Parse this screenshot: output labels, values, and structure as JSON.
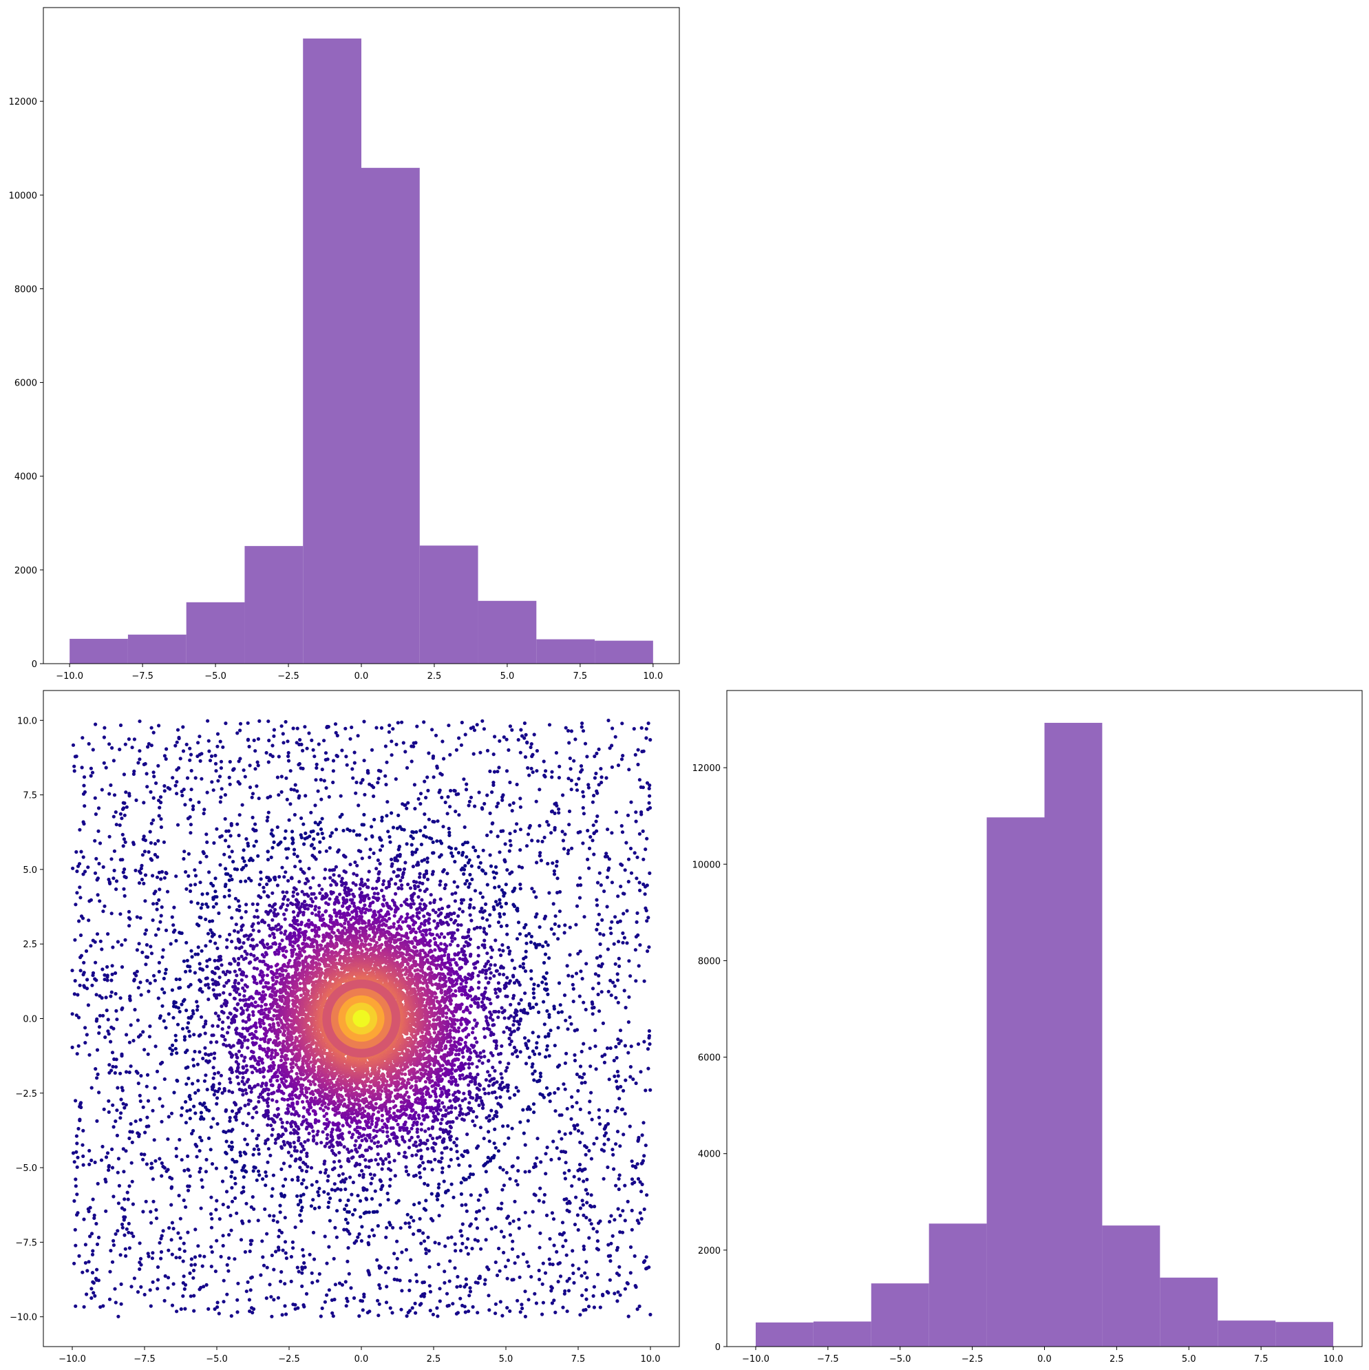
{
  "colors": {
    "bar": "#9467bd",
    "scatter_colormap": [
      "#0d0887",
      "#6a00a8",
      "#b12a90",
      "#e16462",
      "#fca636",
      "#f0f921"
    ],
    "scatter_colormap_name": "plasma"
  },
  "chart_data": [
    {
      "id": "hist-x",
      "type": "bar",
      "subtype": "histogram",
      "bin_edges": [
        -10,
        -8,
        -6,
        -4,
        -2,
        0,
        2,
        4,
        6,
        8,
        10
      ],
      "values": [
        530,
        620,
        1310,
        2510,
        13340,
        10580,
        2520,
        1340,
        520,
        490
      ],
      "xlim": [
        -10.9,
        10.9
      ],
      "ylim": [
        0,
        14000
      ],
      "xticks": [
        -10.0,
        -7.5,
        -5.0,
        -2.5,
        0.0,
        2.5,
        5.0,
        7.5,
        10.0
      ],
      "xtick_labels": [
        "−10.0",
        "−7.5",
        "−5.0",
        "−2.5",
        "0.0",
        "2.5",
        "5.0",
        "7.5",
        "10.0"
      ],
      "yticks": [
        0,
        2000,
        4000,
        6000,
        8000,
        10000,
        12000
      ],
      "ytick_labels": [
        "0",
        "2000",
        "4000",
        "6000",
        "8000",
        "10000",
        "12000"
      ],
      "title": "",
      "xlabel": "",
      "ylabel": ""
    },
    {
      "id": "scatter-xy",
      "type": "scatter",
      "description_of_data": "About 30000 points in [-10,10] x [-10,10]: a dense radial cluster around the origin (radius up to about 6.5) plus uniform background; color encodes radial density (plasma colormap, yellow at center).",
      "components": {
        "uniform_background": {
          "xrange": [
            -10,
            10
          ],
          "yrange": [
            -10,
            10
          ]
        },
        "radial_cluster": {
          "center": [
            0,
            0
          ],
          "max_radius": 6.5
        }
      },
      "xlim": [
        -11,
        11
      ],
      "ylim": [
        -11,
        11
      ],
      "xticks": [
        -10.0,
        -7.5,
        -5.0,
        -2.5,
        0.0,
        2.5,
        5.0,
        7.5,
        10.0
      ],
      "xtick_labels": [
        "−10.0",
        "−7.5",
        "−5.0",
        "−2.5",
        "0.0",
        "2.5",
        "5.0",
        "7.5",
        "10.0"
      ],
      "yticks": [
        -10.0,
        -7.5,
        -5.0,
        -2.5,
        0.0,
        2.5,
        5.0,
        7.5,
        10.0
      ],
      "ytick_labels": [
        "−10.0",
        "−7.5",
        "−5.0",
        "−2.5",
        "0.0",
        "2.5",
        "5.0",
        "7.5",
        "10.0"
      ],
      "title": "",
      "xlabel": "",
      "ylabel": ""
    },
    {
      "id": "hist-y",
      "type": "bar",
      "subtype": "histogram",
      "bin_edges": [
        -10,
        -8,
        -6,
        -4,
        -2,
        0,
        2,
        4,
        6,
        8,
        10
      ],
      "values": [
        500,
        520,
        1310,
        2550,
        10970,
        12930,
        2510,
        1430,
        540,
        510
      ],
      "xlim": [
        -11,
        11
      ],
      "ylim": [
        0,
        13600
      ],
      "xticks": [
        -10.0,
        -7.5,
        -5.0,
        -2.5,
        0.0,
        2.5,
        5.0,
        7.5,
        10.0
      ],
      "xtick_labels": [
        "−10.0",
        "−7.5",
        "−5.0",
        "−2.5",
        "0.0",
        "2.5",
        "5.0",
        "7.5",
        "10.0"
      ],
      "yticks": [
        0,
        2000,
        4000,
        6000,
        8000,
        10000,
        12000
      ],
      "ytick_labels": [
        "0",
        "2000",
        "4000",
        "6000",
        "8000",
        "10000",
        "12000"
      ],
      "title": "",
      "xlabel": "",
      "ylabel": ""
    }
  ]
}
